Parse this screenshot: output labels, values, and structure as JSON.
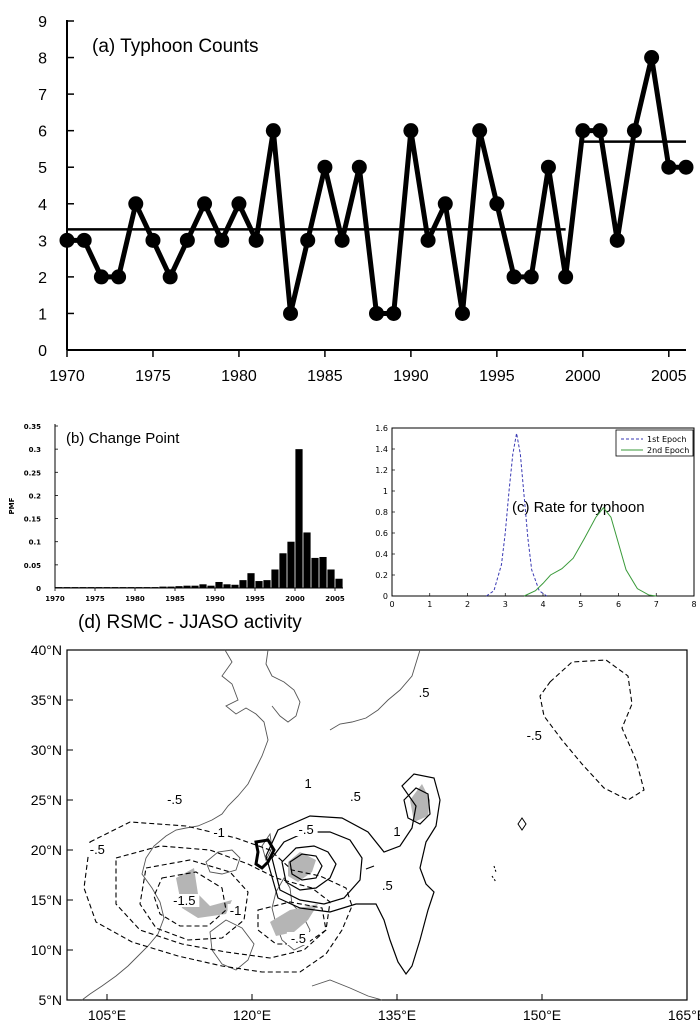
{
  "chart_data": [
    {
      "type": "line",
      "title": "(a) Typhoon Counts",
      "xlim": [
        1970,
        2006
      ],
      "ylim": [
        0,
        9
      ],
      "x_ticks": [
        1970,
        1975,
        1980,
        1985,
        1990,
        1995,
        2000,
        2005
      ],
      "y_ticks": [
        0,
        1,
        2,
        3,
        4,
        5,
        6,
        7,
        8,
        9
      ],
      "grid": false,
      "x": [
        1970,
        1971,
        1972,
        1973,
        1974,
        1975,
        1976,
        1977,
        1978,
        1979,
        1980,
        1981,
        1982,
        1983,
        1984,
        1985,
        1986,
        1987,
        1988,
        1989,
        1990,
        1991,
        1992,
        1993,
        1994,
        1995,
        1996,
        1997,
        1998,
        1999,
        2000,
        2001,
        2002,
        2003,
        2004,
        2005,
        2006
      ],
      "series": [
        {
          "values": [
            3,
            3,
            2,
            2,
            4,
            3,
            2,
            3,
            4,
            3,
            4,
            3,
            6,
            1,
            3,
            5,
            3,
            5,
            1,
            1,
            6,
            3,
            4,
            1,
            6,
            4,
            2,
            2,
            5,
            2,
            6,
            6,
            3,
            6,
            8,
            5,
            5
          ]
        }
      ],
      "epoch_means": [
        {
          "x_start": 1970,
          "x_end": 1999,
          "value": 3.3
        },
        {
          "x_start": 2000,
          "x_end": 2006,
          "value": 5.7
        }
      ]
    },
    {
      "type": "bar",
      "title": "(b) Change Point",
      "ylabel": "PMF",
      "xlim": [
        1970,
        2006
      ],
      "ylim": [
        0,
        0.35
      ],
      "x_ticks": [
        1970,
        1975,
        1980,
        1985,
        1990,
        1995,
        2000,
        2005
      ],
      "y_ticks": [
        "0",
        "0.05",
        "0.1",
        "0.15",
        "0.2",
        "0.25",
        "0.3",
        "0.35"
      ],
      "categories": [
        1970,
        1971,
        1972,
        1973,
        1974,
        1975,
        1976,
        1977,
        1978,
        1979,
        1980,
        1981,
        1982,
        1983,
        1984,
        1985,
        1986,
        1987,
        1988,
        1989,
        1990,
        1991,
        1992,
        1993,
        1994,
        1995,
        1996,
        1997,
        1998,
        1999,
        2000,
        2001,
        2002,
        2003,
        2004,
        2005
      ],
      "values": [
        0.002,
        0.002,
        0.002,
        0.002,
        0.002,
        0.002,
        0.002,
        0.002,
        0.002,
        0.002,
        0.002,
        0.002,
        0.002,
        0.003,
        0.003,
        0.004,
        0.005,
        0.005,
        0.008,
        0.005,
        0.013,
        0.008,
        0.007,
        0.017,
        0.032,
        0.015,
        0.017,
        0.04,
        0.075,
        0.1,
        0.3,
        0.12,
        0.065,
        0.067,
        0.04,
        0.02
      ]
    },
    {
      "type": "line",
      "title": "(c) Rate for typhoon",
      "xlim": [
        0,
        8
      ],
      "ylim": [
        0,
        1.6
      ],
      "x_ticks": [
        "0",
        "1",
        "2",
        "3",
        "4",
        "5",
        "6",
        "7",
        "8"
      ],
      "y_ticks": [
        "0",
        "0.2",
        "0.4",
        "0.6",
        "0.8",
        "1",
        "1.2",
        "1.4",
        "1.6"
      ],
      "legend": "top-right",
      "series": [
        {
          "name": "1st Epoch",
          "color": "#3a3ab4",
          "style": "dashed",
          "x": [
            2.5,
            2.7,
            2.9,
            3.0,
            3.1,
            3.2,
            3.3,
            3.4,
            3.5,
            3.6,
            3.7,
            3.9,
            4.1
          ],
          "y": [
            0,
            0.05,
            0.3,
            0.6,
            1.0,
            1.35,
            1.55,
            1.35,
            0.95,
            0.55,
            0.25,
            0.05,
            0
          ]
        },
        {
          "name": "2nd Epoch",
          "color": "#3a9a3a",
          "style": "solid",
          "x": [
            3.5,
            3.8,
            4.0,
            4.2,
            4.5,
            4.8,
            5.1,
            5.4,
            5.6,
            5.8,
            6.0,
            6.2,
            6.5,
            6.8,
            7.0
          ],
          "y": [
            0,
            0.05,
            0.12,
            0.2,
            0.26,
            0.36,
            0.55,
            0.75,
            0.84,
            0.75,
            0.5,
            0.25,
            0.07,
            0.01,
            0
          ]
        }
      ]
    },
    {
      "type": "map",
      "title": "(d)  RSMC  -  JJASO  activity",
      "lon_ticks": [
        "105°E",
        "120°E",
        "135°E",
        "150°E",
        "165°E"
      ],
      "lat_ticks": [
        "5°N",
        "10°N",
        "15°N",
        "20°N",
        "25°N",
        "30°N",
        "35°N",
        "40°N"
      ],
      "contour_labels": [
        {
          "text": "1",
          "lon": 125.8,
          "lat": 26.3
        },
        {
          "text": ".5",
          "lon": 130.7,
          "lat": 25.0
        },
        {
          "text": ".5",
          "lon": 137.8,
          "lat": 35.4
        },
        {
          "text": "1",
          "lon": 135.0,
          "lat": 21.5
        },
        {
          "text": ".5",
          "lon": 134.0,
          "lat": 16.1
        },
        {
          "text": "-.5",
          "lon": 112.0,
          "lat": 24.7
        },
        {
          "text": "-.5",
          "lon": 104.0,
          "lat": 19.7
        },
        {
          "text": "-1",
          "lon": 116.6,
          "lat": 21.4
        },
        {
          "text": "-.5",
          "lon": 125.6,
          "lat": 21.7
        },
        {
          "text": "-1.5",
          "lon": 113.0,
          "lat": 14.6
        },
        {
          "text": "-1",
          "lon": 118.3,
          "lat": 13.6
        },
        {
          "text": "-.5",
          "lon": 124.8,
          "lat": 10.8
        },
        {
          "text": "-.5",
          "lon": 149.2,
          "lat": 31.1
        }
      ]
    }
  ]
}
